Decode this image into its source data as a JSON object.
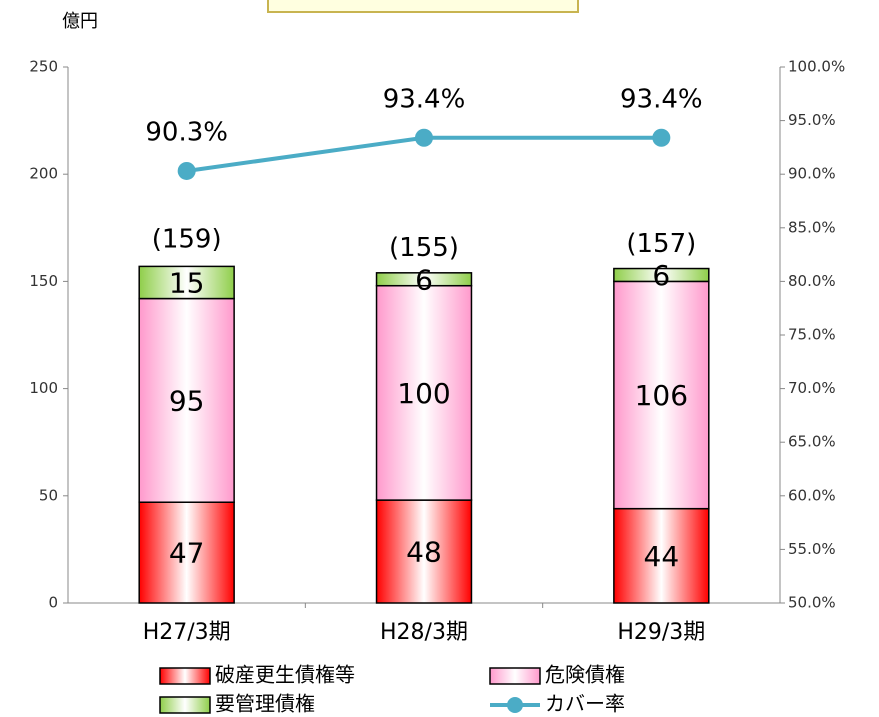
{
  "chart_data": {
    "type": "bar",
    "y_axis_label": "億円",
    "categories": [
      "H27/3期",
      "H28/3期",
      "H29/3期"
    ],
    "series": [
      {
        "name": "破産更生債権等",
        "color": "#ff0000",
        "values": [
          47,
          48,
          44
        ]
      },
      {
        "name": "危険債権",
        "color": "#ff99cc",
        "values": [
          95,
          100,
          106
        ]
      },
      {
        "name": "要管理債権",
        "color": "#8fce4a",
        "values": [
          15,
          6,
          6
        ]
      },
      {
        "name": "カバー率",
        "type": "line",
        "axis": "y2",
        "color": "#4bacc6",
        "values": [
          90.3,
          93.4,
          93.4
        ],
        "value_labels": [
          "90.3%",
          "93.4%",
          "93.4%"
        ]
      }
    ],
    "totals": [
      159,
      155,
      157
    ],
    "total_labels": [
      "(159)",
      "(155)",
      "(157)"
    ],
    "ylim": [
      0,
      250
    ],
    "yticks": [
      0,
      50,
      100,
      150,
      200,
      250
    ],
    "y2lim": [
      50,
      100
    ],
    "y2ticks": [
      {
        "value": 50,
        "label": "50.0%"
      },
      {
        "value": 55,
        "label": "55.0%"
      },
      {
        "value": 60,
        "label": "60.0%"
      },
      {
        "value": 65,
        "label": "65.0%"
      },
      {
        "value": 70,
        "label": "70.0%"
      },
      {
        "value": 75,
        "label": "75.0%"
      },
      {
        "value": 80,
        "label": "80.0%"
      },
      {
        "value": 85,
        "label": "85.0%"
      },
      {
        "value": 90,
        "label": "90.0%"
      },
      {
        "value": 95,
        "label": "95.0%"
      },
      {
        "value": 100,
        "label": "100.0%"
      }
    ],
    "legend": "bottom"
  }
}
